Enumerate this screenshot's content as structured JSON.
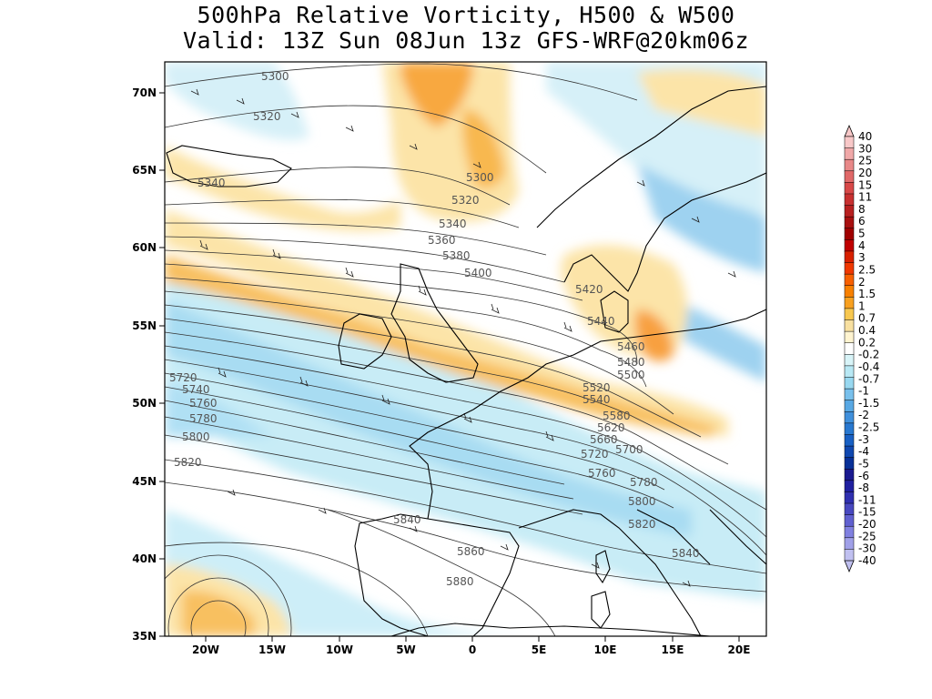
{
  "title": {
    "line1": "500hPa Relative Vorticity, H500 & W500",
    "line2": "Valid: 13Z Sun 08Jun 13z GFS-WRF@20km06z"
  },
  "axes": {
    "lat_labels": [
      "70N",
      "65N",
      "60N",
      "55N",
      "50N",
      "45N",
      "40N",
      "35N"
    ],
    "lon_labels": [
      "20W",
      "15W",
      "10W",
      "5W",
      "0",
      "5E",
      "10E",
      "15E",
      "20E"
    ]
  },
  "colorbar": {
    "labels": [
      "40",
      "30",
      "25",
      "20",
      "15",
      "11",
      "8",
      "6",
      "5",
      "4",
      "3",
      "2.5",
      "2",
      "1.5",
      "1",
      "0.7",
      "0.4",
      "0.2",
      "-0.2",
      "-0.4",
      "-0.7",
      "-1",
      "-1.5",
      "-2",
      "-2.5",
      "-3",
      "-4",
      "-5",
      "-6",
      "-8",
      "-11",
      "-15",
      "-20",
      "-25",
      "-30",
      "-40"
    ],
    "colors": [
      "#f8c8c8",
      "#f0a8a8",
      "#e88888",
      "#e06868",
      "#d84848",
      "#c83030",
      "#b82020",
      "#a81010",
      "#a00000",
      "#c00000",
      "#d82000",
      "#f03800",
      "#f86000",
      "#f88000",
      "#f8a020",
      "#f8c850",
      "#f8e0a0",
      "#fff4d0",
      "#ffffff",
      "#d8f4f8",
      "#b8e8f4",
      "#98d8f0",
      "#78c0ec",
      "#58a8e4",
      "#4090dc",
      "#2878d0",
      "#1860c4",
      "#1048b0",
      "#083098",
      "#1a1a90",
      "#2020a0",
      "#3030b0",
      "#4848c0",
      "#6060d0",
      "#8080e0",
      "#a0a0e8",
      "#c0c0f0"
    ]
  },
  "contours": {
    "labels": [
      "5300",
      "5320",
      "5340",
      "5300",
      "5320",
      "5340",
      "5360",
      "5380",
      "5400",
      "5420",
      "5440",
      "5460",
      "5480",
      "5500",
      "5520",
      "5540",
      "5580",
      "5620",
      "5660",
      "5700",
      "5720",
      "5760",
      "5780",
      "5800",
      "5820",
      "5840",
      "5720",
      "5740",
      "5760",
      "5780",
      "5800",
      "5820",
      "5840",
      "5860",
      "5880",
      "5840"
    ]
  }
}
